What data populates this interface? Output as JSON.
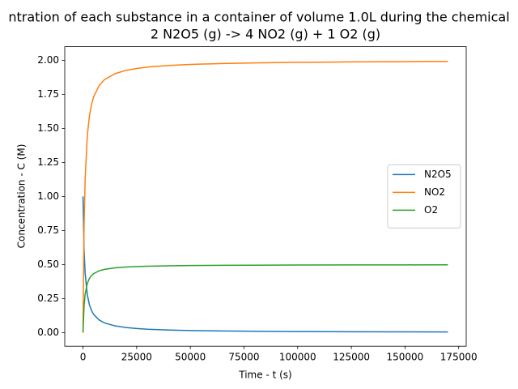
{
  "chart_data": {
    "type": "line",
    "title": "ntration of each substance in a container of volume 1.0L during the chemical",
    "subtitle": "2 N2O5 (g) -> 4 NO2 (g) + 1 O2 (g)",
    "x_label": "Time - t (s)",
    "y_label": "Concentration - C (M)",
    "x": [
      0,
      500,
      1000,
      2000,
      3000,
      4000,
      5000,
      7500,
      10000,
      15000,
      20000,
      25000,
      30000,
      40000,
      50000,
      65000,
      80000,
      100000,
      125000,
      150000,
      170000
    ],
    "series": [
      {
        "name": "N2O5",
        "color": "#1f77b4",
        "values": [
          1.0,
          0.606,
          0.435,
          0.278,
          0.204,
          0.161,
          0.133,
          0.093,
          0.071,
          0.049,
          0.037,
          0.03,
          0.025,
          0.019,
          0.015,
          0.012,
          0.0095,
          0.0076,
          0.0061,
          0.0051,
          0.0045
        ]
      },
      {
        "name": "NO2",
        "color": "#ff7f0e",
        "values": [
          0,
          0.788,
          1.13,
          1.444,
          1.592,
          1.678,
          1.734,
          1.814,
          1.858,
          1.902,
          1.926,
          1.94,
          1.95,
          1.962,
          1.97,
          1.976,
          1.981,
          1.985,
          1.988,
          1.99,
          1.991
        ]
      },
      {
        "name": "O2",
        "color": "#2ca02c",
        "values": [
          0,
          0.197,
          0.2825,
          0.361,
          0.398,
          0.4195,
          0.4335,
          0.4535,
          0.4645,
          0.4755,
          0.4815,
          0.485,
          0.4875,
          0.4905,
          0.4925,
          0.494,
          0.4953,
          0.4962,
          0.497,
          0.4975,
          0.4978
        ]
      }
    ],
    "xlim": [
      -8500,
      178500
    ],
    "ylim": [
      -0.1,
      2.1
    ],
    "xticks": [
      0,
      25000,
      50000,
      75000,
      100000,
      125000,
      150000,
      175000
    ],
    "yticks": [
      {
        "value": 0,
        "label": "0.00"
      },
      {
        "value": 0.25,
        "label": "0.25"
      },
      {
        "value": 0.5,
        "label": "0.50"
      },
      {
        "value": 0.75,
        "label": "0.75"
      },
      {
        "value": 1,
        "label": "1.00"
      },
      {
        "value": 1.25,
        "label": "1.25"
      },
      {
        "value": 1.5,
        "label": "1.50"
      },
      {
        "value": 1.75,
        "label": "1.75"
      },
      {
        "value": 2,
        "label": "2.00"
      }
    ],
    "grid": false,
    "legend": "right"
  }
}
